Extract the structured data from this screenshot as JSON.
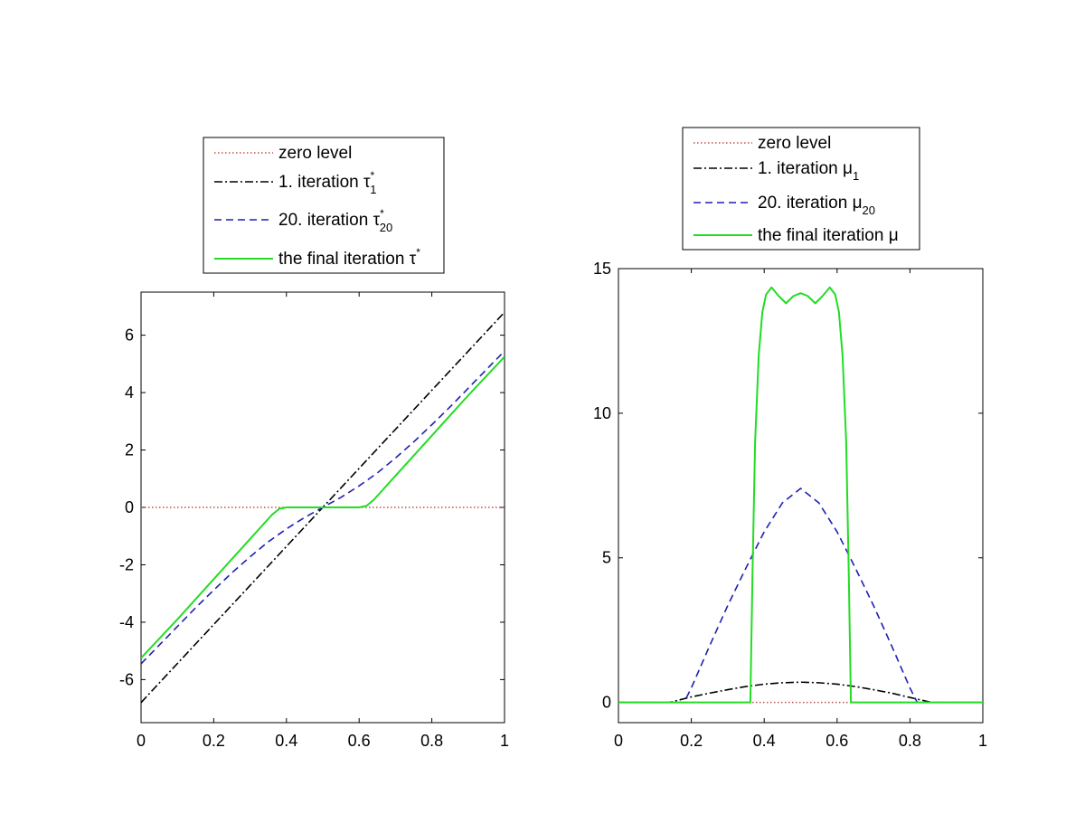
{
  "chart_data": [
    {
      "type": "line",
      "title": "",
      "xlabel": "",
      "ylabel": "",
      "xlim": [
        0,
        1
      ],
      "ylim": [
        -7.5,
        7.5
      ],
      "xticks": [
        0,
        0.2,
        0.4,
        0.6,
        0.8,
        1
      ],
      "xtick_labels": [
        "0",
        "0.2",
        "0.4",
        "0.6",
        "0.8",
        "1"
      ],
      "yticks": [
        -6,
        -4,
        -2,
        0,
        2,
        4,
        6
      ],
      "ytick_labels": [
        "-6",
        "-4",
        "-2",
        "0",
        "2",
        "4",
        "6"
      ],
      "grid": false,
      "legend_position": "above-plot",
      "legend": [
        {
          "key": "zero",
          "label": "zero level",
          "sub": "",
          "sup": ""
        },
        {
          "key": "it1",
          "label": "1. iteration τ",
          "sub": "1",
          "sup": "*"
        },
        {
          "key": "it20",
          "label": "20. iteration τ",
          "sub": "20",
          "sup": "*"
        },
        {
          "key": "final",
          "label": "the final iteration τ",
          "sub": "",
          "sup": "*"
        }
      ],
      "series": [
        {
          "key": "zero",
          "color": "#c0504d",
          "dash": "1.5,2.5",
          "x": [
            0,
            1
          ],
          "y": [
            0,
            0
          ]
        },
        {
          "key": "it1",
          "color": "#000000",
          "dash": "9,3,2,3",
          "x": [
            0,
            1
          ],
          "y": [
            -6.8,
            6.8
          ]
        },
        {
          "key": "it20",
          "color": "#1f1fb4",
          "dash": "8,5",
          "x": [
            0,
            0.05,
            0.1,
            0.15,
            0.2,
            0.25,
            0.3,
            0.35,
            0.4,
            0.45,
            0.5,
            0.55,
            0.6,
            0.65,
            0.7,
            0.75,
            0.8,
            0.85,
            0.9,
            0.95,
            1
          ],
          "y": [
            -5.45,
            -4.8,
            -4.15,
            -3.5,
            -2.88,
            -2.28,
            -1.72,
            -1.2,
            -0.75,
            -0.35,
            0,
            0.35,
            0.75,
            1.2,
            1.72,
            2.28,
            2.88,
            3.5,
            4.15,
            4.8,
            5.45
          ]
        },
        {
          "key": "final",
          "color": "#22dd22",
          "dash": "",
          "x": [
            0,
            0.1,
            0.2,
            0.3,
            0.36,
            0.38,
            0.4,
            0.5,
            0.6,
            0.62,
            0.64,
            0.7,
            0.8,
            0.9,
            1
          ],
          "y": [
            -5.25,
            -3.9,
            -2.5,
            -1.1,
            -0.26,
            -0.05,
            0,
            0,
            0,
            0.05,
            0.26,
            1.1,
            2.5,
            3.9,
            5.25
          ]
        }
      ]
    },
    {
      "type": "line",
      "title": "",
      "xlabel": "",
      "ylabel": "",
      "xlim": [
        0,
        1
      ],
      "ylim": [
        -0.7,
        15
      ],
      "xticks": [
        0,
        0.2,
        0.4,
        0.6,
        0.8,
        1
      ],
      "xtick_labels": [
        "0",
        "0.2",
        "0.4",
        "0.6",
        "0.8",
        "1"
      ],
      "yticks": [
        0,
        5,
        10,
        15
      ],
      "ytick_labels": [
        "0",
        "5",
        "10",
        "15"
      ],
      "grid": false,
      "legend_position": "above-plot",
      "legend": [
        {
          "key": "zero",
          "label": "zero level",
          "sub": "",
          "sup": ""
        },
        {
          "key": "it1",
          "label": "1. iteration μ",
          "sub": "1",
          "sup": ""
        },
        {
          "key": "it20",
          "label": "20. iteration μ",
          "sub": "20",
          "sup": ""
        },
        {
          "key": "final",
          "label": "the final iteration μ",
          "sub": "",
          "sup": ""
        }
      ],
      "series": [
        {
          "key": "zero",
          "color": "#c0504d",
          "dash": "1.5,2.5",
          "x": [
            0,
            1
          ],
          "y": [
            0,
            0
          ]
        },
        {
          "key": "it1",
          "color": "#000000",
          "dash": "9,3,2,3",
          "x": [
            0,
            0.14,
            0.2,
            0.25,
            0.3,
            0.35,
            0.4,
            0.45,
            0.5,
            0.55,
            0.6,
            0.65,
            0.7,
            0.75,
            0.8,
            0.86,
            1
          ],
          "y": [
            0,
            0,
            0.19,
            0.32,
            0.44,
            0.55,
            0.63,
            0.68,
            0.7,
            0.68,
            0.63,
            0.55,
            0.44,
            0.32,
            0.17,
            0,
            0
          ]
        },
        {
          "key": "it20",
          "color": "#1f1fb4",
          "dash": "8,5",
          "x": [
            0,
            0.18,
            0.2,
            0.25,
            0.3,
            0.35,
            0.4,
            0.45,
            0.5,
            0.55,
            0.6,
            0.65,
            0.7,
            0.75,
            0.8,
            0.82,
            1
          ],
          "y": [
            0,
            0,
            0.5,
            1.95,
            3.35,
            4.65,
            5.9,
            6.9,
            7.4,
            6.9,
            5.9,
            4.65,
            3.35,
            1.95,
            0.5,
            0,
            0
          ]
        },
        {
          "key": "final",
          "color": "#22dd22",
          "dash": "",
          "x": [
            0,
            0.362,
            0.368,
            0.375,
            0.385,
            0.395,
            0.405,
            0.42,
            0.44,
            0.46,
            0.48,
            0.5,
            0.52,
            0.54,
            0.56,
            0.58,
            0.595,
            0.605,
            0.615,
            0.625,
            0.632,
            0.638,
            1
          ],
          "y": [
            0,
            0,
            4.5,
            9.0,
            12.0,
            13.5,
            14.1,
            14.35,
            14.05,
            13.8,
            14.05,
            14.15,
            14.05,
            13.8,
            14.05,
            14.35,
            14.1,
            13.5,
            12.0,
            9.0,
            4.5,
            0,
            0
          ]
        }
      ]
    }
  ]
}
